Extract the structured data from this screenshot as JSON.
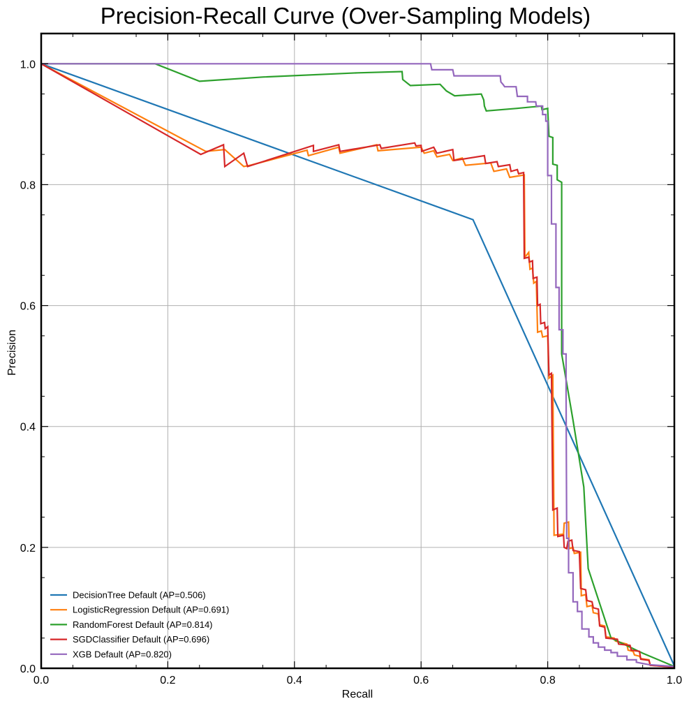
{
  "chart_data": {
    "type": "line",
    "title": "Precision-Recall Curve (Over-Sampling Models)",
    "xlabel": "Recall",
    "ylabel": "Precision",
    "xlim": [
      0,
      1
    ],
    "ylim": [
      0,
      1.05
    ],
    "xticks": [
      "0.0",
      "0.2",
      "0.4",
      "0.6",
      "0.8",
      "1.0"
    ],
    "yticks": [
      "0.0",
      "0.2",
      "0.4",
      "0.6",
      "0.8",
      "1.0"
    ],
    "grid": true,
    "legend_position": "lower left",
    "series": [
      {
        "name": "DecisionTree Default (AP=0.506)",
        "color": "#1f77b4",
        "points": [
          [
            0,
            1.0
          ],
          [
            0.682,
            0.742
          ],
          [
            1.0,
            0.004
          ]
        ]
      },
      {
        "name": "LogisticRegression Default (AP=0.691)",
        "color": "#ff7f0e",
        "points": [
          [
            0,
            1.0
          ],
          [
            0.26,
            0.855
          ],
          [
            0.29,
            0.858
          ],
          [
            0.32,
            0.83
          ],
          [
            0.33,
            0.832
          ],
          [
            0.42,
            0.857
          ],
          [
            0.422,
            0.848
          ],
          [
            0.47,
            0.862
          ],
          [
            0.472,
            0.852
          ],
          [
            0.53,
            0.866
          ],
          [
            0.532,
            0.856
          ],
          [
            0.6,
            0.862
          ],
          [
            0.605,
            0.852
          ],
          [
            0.62,
            0.856
          ],
          [
            0.625,
            0.846
          ],
          [
            0.645,
            0.85
          ],
          [
            0.65,
            0.84
          ],
          [
            0.665,
            0.844
          ],
          [
            0.67,
            0.832
          ],
          [
            0.71,
            0.836
          ],
          [
            0.715,
            0.822
          ],
          [
            0.735,
            0.826
          ],
          [
            0.74,
            0.812
          ],
          [
            0.763,
            0.816
          ],
          [
            0.764,
            0.68
          ],
          [
            0.77,
            0.688
          ],
          [
            0.772,
            0.66
          ],
          [
            0.776,
            0.662
          ],
          [
            0.778,
            0.637
          ],
          [
            0.782,
            0.64
          ],
          [
            0.784,
            0.556
          ],
          [
            0.79,
            0.558
          ],
          [
            0.792,
            0.548
          ],
          [
            0.8,
            0.55
          ],
          [
            0.802,
            0.48
          ],
          [
            0.808,
            0.485
          ],
          [
            0.81,
            0.22
          ],
          [
            0.825,
            0.222
          ],
          [
            0.826,
            0.24
          ],
          [
            0.833,
            0.242
          ],
          [
            0.834,
            0.198
          ],
          [
            0.84,
            0.2
          ],
          [
            0.842,
            0.19
          ],
          [
            0.852,
            0.192
          ],
          [
            0.853,
            0.12
          ],
          [
            0.86,
            0.122
          ],
          [
            0.862,
            0.102
          ],
          [
            0.87,
            0.104
          ],
          [
            0.872,
            0.092
          ],
          [
            0.88,
            0.09
          ],
          [
            0.882,
            0.072
          ],
          [
            0.89,
            0.07
          ],
          [
            0.892,
            0.052
          ],
          [
            0.905,
            0.05
          ],
          [
            0.907,
            0.045
          ],
          [
            0.925,
            0.04
          ],
          [
            0.927,
            0.03
          ],
          [
            0.935,
            0.028
          ],
          [
            0.937,
            0.022
          ],
          [
            0.945,
            0.02
          ],
          [
            0.947,
            0.016
          ],
          [
            0.96,
            0.014
          ],
          [
            0.962,
            0.005
          ],
          [
            1.0,
            0.002
          ]
        ]
      },
      {
        "name": "RandomForest Default (AP=0.814)",
        "color": "#2ca02c",
        "points": [
          [
            0,
            1.0
          ],
          [
            0.18,
            1.0
          ],
          [
            0.25,
            0.971
          ],
          [
            0.35,
            0.978
          ],
          [
            0.5,
            0.985
          ],
          [
            0.57,
            0.987
          ],
          [
            0.571,
            0.974
          ],
          [
            0.583,
            0.964
          ],
          [
            0.63,
            0.966
          ],
          [
            0.64,
            0.955
          ],
          [
            0.653,
            0.947
          ],
          [
            0.695,
            0.95
          ],
          [
            0.699,
            0.94
          ],
          [
            0.7,
            0.93
          ],
          [
            0.703,
            0.922
          ],
          [
            0.75,
            0.926
          ],
          [
            0.79,
            0.93
          ],
          [
            0.791,
            0.924
          ],
          [
            0.8,
            0.926
          ],
          [
            0.8,
            0.924
          ],
          [
            0.802,
            0.88
          ],
          [
            0.808,
            0.878
          ],
          [
            0.808,
            0.834
          ],
          [
            0.815,
            0.832
          ],
          [
            0.815,
            0.808
          ],
          [
            0.822,
            0.804
          ],
          [
            0.822,
            0.52
          ],
          [
            0.84,
            0.41
          ],
          [
            0.857,
            0.3
          ],
          [
            0.864,
            0.165
          ],
          [
            0.9,
            0.05
          ],
          [
            0.95,
            0.025
          ],
          [
            1.0,
            0.003
          ]
        ]
      },
      {
        "name": "SGDClassifier Default (AP=0.696)",
        "color": "#d62728",
        "points": [
          [
            0,
            1.0
          ],
          [
            0.252,
            0.85
          ],
          [
            0.288,
            0.866
          ],
          [
            0.29,
            0.83
          ],
          [
            0.32,
            0.852
          ],
          [
            0.326,
            0.83
          ],
          [
            0.43,
            0.865
          ],
          [
            0.43,
            0.855
          ],
          [
            0.47,
            0.866
          ],
          [
            0.472,
            0.855
          ],
          [
            0.535,
            0.866
          ],
          [
            0.537,
            0.86
          ],
          [
            0.59,
            0.869
          ],
          [
            0.592,
            0.864
          ],
          [
            0.6,
            0.865
          ],
          [
            0.601,
            0.855
          ],
          [
            0.62,
            0.862
          ],
          [
            0.625,
            0.852
          ],
          [
            0.65,
            0.858
          ],
          [
            0.652,
            0.84
          ],
          [
            0.7,
            0.848
          ],
          [
            0.702,
            0.835
          ],
          [
            0.72,
            0.838
          ],
          [
            0.722,
            0.83
          ],
          [
            0.74,
            0.833
          ],
          [
            0.742,
            0.822
          ],
          [
            0.752,
            0.825
          ],
          [
            0.754,
            0.818
          ],
          [
            0.762,
            0.82
          ],
          [
            0.763,
            0.678
          ],
          [
            0.77,
            0.68
          ],
          [
            0.771,
            0.672
          ],
          [
            0.776,
            0.674
          ],
          [
            0.777,
            0.645
          ],
          [
            0.783,
            0.647
          ],
          [
            0.784,
            0.6
          ],
          [
            0.788,
            0.602
          ],
          [
            0.789,
            0.57
          ],
          [
            0.795,
            0.572
          ],
          [
            0.796,
            0.562
          ],
          [
            0.8,
            0.565
          ],
          [
            0.802,
            0.485
          ],
          [
            0.806,
            0.488
          ],
          [
            0.808,
            0.262
          ],
          [
            0.815,
            0.265
          ],
          [
            0.816,
            0.218
          ],
          [
            0.825,
            0.22
          ],
          [
            0.826,
            0.2
          ],
          [
            0.83,
            0.198
          ],
          [
            0.832,
            0.21
          ],
          [
            0.838,
            0.212
          ],
          [
            0.84,
            0.195
          ],
          [
            0.85,
            0.193
          ],
          [
            0.852,
            0.132
          ],
          [
            0.86,
            0.13
          ],
          [
            0.862,
            0.112
          ],
          [
            0.87,
            0.11
          ],
          [
            0.872,
            0.1
          ],
          [
            0.88,
            0.098
          ],
          [
            0.882,
            0.07
          ],
          [
            0.89,
            0.068
          ],
          [
            0.892,
            0.05
          ],
          [
            0.91,
            0.048
          ],
          [
            0.912,
            0.04
          ],
          [
            0.93,
            0.038
          ],
          [
            0.932,
            0.03
          ],
          [
            0.945,
            0.028
          ],
          [
            0.947,
            0.015
          ],
          [
            0.96,
            0.013
          ],
          [
            0.962,
            0.005
          ],
          [
            1.0,
            0.002
          ]
        ]
      },
      {
        "name": "XGB Default (AP=0.820)",
        "color": "#9467bd",
        "points": [
          [
            0,
            1.0
          ],
          [
            0.615,
            1.0
          ],
          [
            0.617,
            0.99
          ],
          [
            0.65,
            0.99
          ],
          [
            0.652,
            0.98
          ],
          [
            0.725,
            0.98
          ],
          [
            0.726,
            0.97
          ],
          [
            0.73,
            0.965
          ],
          [
            0.732,
            0.962
          ],
          [
            0.75,
            0.962
          ],
          [
            0.752,
            0.946
          ],
          [
            0.768,
            0.946
          ],
          [
            0.768,
            0.937
          ],
          [
            0.781,
            0.937
          ],
          [
            0.782,
            0.93
          ],
          [
            0.792,
            0.93
          ],
          [
            0.792,
            0.916
          ],
          [
            0.797,
            0.916
          ],
          [
            0.797,
            0.905
          ],
          [
            0.8,
            0.905
          ],
          [
            0.8,
            0.815
          ],
          [
            0.806,
            0.815
          ],
          [
            0.806,
            0.735
          ],
          [
            0.813,
            0.735
          ],
          [
            0.813,
            0.63
          ],
          [
            0.818,
            0.63
          ],
          [
            0.818,
            0.56
          ],
          [
            0.824,
            0.56
          ],
          [
            0.824,
            0.52
          ],
          [
            0.829,
            0.52
          ],
          [
            0.829,
            0.46
          ],
          [
            0.83,
            0.215
          ],
          [
            0.833,
            0.215
          ],
          [
            0.833,
            0.158
          ],
          [
            0.84,
            0.158
          ],
          [
            0.84,
            0.11
          ],
          [
            0.847,
            0.11
          ],
          [
            0.847,
            0.094
          ],
          [
            0.854,
            0.094
          ],
          [
            0.854,
            0.065
          ],
          [
            0.865,
            0.065
          ],
          [
            0.865,
            0.052
          ],
          [
            0.872,
            0.052
          ],
          [
            0.872,
            0.042
          ],
          [
            0.88,
            0.042
          ],
          [
            0.88,
            0.035
          ],
          [
            0.89,
            0.035
          ],
          [
            0.89,
            0.03
          ],
          [
            0.9,
            0.03
          ],
          [
            0.9,
            0.026
          ],
          [
            0.91,
            0.026
          ],
          [
            0.91,
            0.02
          ],
          [
            0.925,
            0.02
          ],
          [
            0.925,
            0.014
          ],
          [
            0.94,
            0.014
          ],
          [
            0.94,
            0.01
          ],
          [
            0.96,
            0.006
          ],
          [
            1.0,
            0.003
          ]
        ]
      }
    ]
  }
}
